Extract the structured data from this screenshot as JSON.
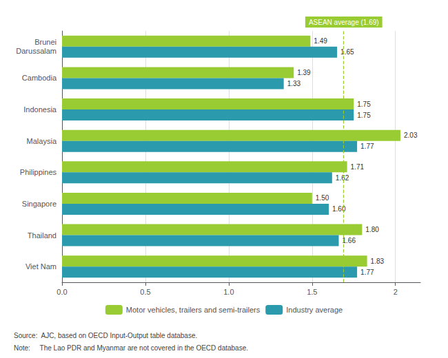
{
  "chart_data": {
    "type": "bar",
    "orientation": "horizontal",
    "categories": [
      "Viet Nam",
      "Thailand",
      "Singapore",
      "Philippines",
      "Malaysia",
      "Indonesia",
      "Cambodia",
      "Brunei\nDarussalam"
    ],
    "series": [
      {
        "name": "Motor vehicles, trailers and semi-trailers",
        "color": "#99cc33",
        "values": [
          1.83,
          1.8,
          1.5,
          1.71,
          2.03,
          1.75,
          1.39,
          1.49
        ],
        "value_labels": [
          "1.83",
          "1.80",
          "1.50",
          "1.71",
          "2.03",
          "1.75",
          "1.39",
          "1.49"
        ]
      },
      {
        "name": "Industry average",
        "color": "#2a9aac",
        "values": [
          1.77,
          1.66,
          1.6,
          1.62,
          1.77,
          1.75,
          1.33,
          1.65
        ],
        "value_labels": [
          "1.77",
          "1.66",
          "1.60",
          "1.62",
          "1.77",
          "1.75",
          "1.33",
          "1.65"
        ]
      }
    ],
    "xlim": [
      0.0,
      2.15
    ],
    "xticks": [
      {
        "value": 0,
        "label": "0.0"
      },
      0.5,
      {
        "value": 1,
        "label": "1.0"
      },
      1.5,
      2
    ],
    "grid": true,
    "legend": "bottom",
    "data_labels": true,
    "annotations": [
      {
        "text": "ASEAN average (1.69)",
        "x": 1.69,
        "line_style": "dashed",
        "color": "#99cc33",
        "text_color": "#ffffff"
      }
    ],
    "source": "Source:  AJC, based on OECD Input-Output table database.",
    "note": "Note:     The Lao PDR and Myanmar are not covered in the OECD database."
  }
}
